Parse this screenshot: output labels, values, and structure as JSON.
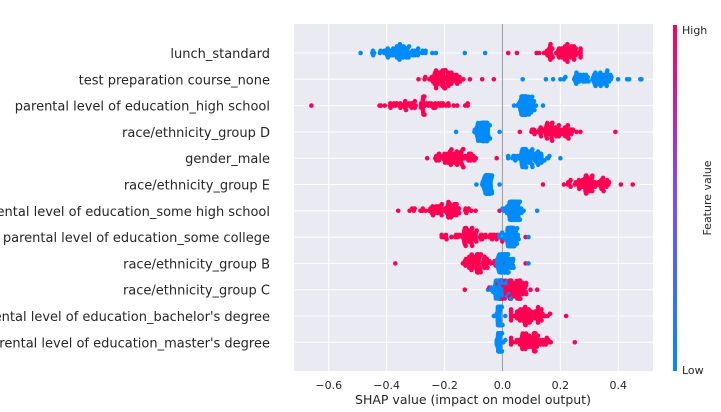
{
  "chart_data": {
    "type": "scatter",
    "subtype": "shap-beeswarm",
    "title": "",
    "xlabel": "SHAP value (impact on model output)",
    "ylabel": "",
    "xlim": [
      -0.72,
      0.52
    ],
    "xticks": [
      -0.6,
      -0.4,
      -0.2,
      0.0,
      0.2,
      0.4
    ],
    "xtick_labels": [
      "−0.6",
      "−0.4",
      "−0.2",
      "0.0",
      "0.2",
      "0.4"
    ],
    "grid": true,
    "colorbar": {
      "label": "Feature value",
      "high_label": "High",
      "low_label": "Low",
      "high_color": "#ff0052",
      "mid_color": "#7a4dff",
      "low_color": "#008bfb"
    },
    "features": [
      {
        "name": "lunch_standard",
        "high": {
          "center": 0.21,
          "spread": 0.055,
          "min": 0.05,
          "max": 0.27
        },
        "low": {
          "center": -0.35,
          "spread": 0.07,
          "min": -0.49,
          "max": -0.13
        },
        "outliers": [
          {
            "x": -0.06,
            "c": "low"
          },
          {
            "x": 0.02,
            "c": "high"
          }
        ]
      },
      {
        "name": "test preparation course_none",
        "high": {
          "center": -0.2,
          "spread": 0.045,
          "min": -0.29,
          "max": -0.07
        },
        "low": {
          "center": 0.32,
          "spread": 0.08,
          "min": 0.15,
          "max": 0.48
        },
        "outliers": [
          {
            "x": -0.03,
            "c": "high"
          },
          {
            "x": 0.07,
            "c": "low"
          }
        ]
      },
      {
        "name": "parental level of education_high school",
        "high": {
          "center": -0.3,
          "spread": 0.1,
          "min": -0.66,
          "max": -0.12
        },
        "low": {
          "center": 0.08,
          "spread": 0.022,
          "min": 0.04,
          "max": 0.14
        },
        "outliers": []
      },
      {
        "name": "race/ethnicity_group D",
        "high": {
          "center": 0.18,
          "spread": 0.06,
          "min": 0.06,
          "max": 0.39
        },
        "low": {
          "center": -0.07,
          "spread": 0.02,
          "min": -0.16,
          "max": -0.01
        },
        "outliers": []
      },
      {
        "name": "gender_male",
        "high": {
          "center": -0.16,
          "spread": 0.045,
          "min": -0.26,
          "max": -0.02
        },
        "low": {
          "center": 0.09,
          "spread": 0.04,
          "min": 0.02,
          "max": 0.2
        },
        "outliers": []
      },
      {
        "name": "race/ethnicity_group E",
        "high": {
          "center": 0.3,
          "spread": 0.06,
          "min": 0.14,
          "max": 0.45
        },
        "low": {
          "center": -0.05,
          "spread": 0.012,
          "min": -0.09,
          "max": -0.01
        },
        "outliers": []
      },
      {
        "name": "parental level of education_some high school",
        "high": {
          "center": -0.2,
          "spread": 0.07,
          "min": -0.36,
          "max": -0.01
        },
        "low": {
          "center": 0.04,
          "spread": 0.02,
          "min": 0.0,
          "max": 0.12
        },
        "outliers": []
      },
      {
        "name": "parental level of education_some college",
        "high": {
          "center": -0.1,
          "spread": 0.06,
          "min": -0.21,
          "max": 0.08
        },
        "low": {
          "center": 0.03,
          "spread": 0.02,
          "min": -0.01,
          "max": 0.09
        },
        "outliers": []
      },
      {
        "name": "race/ethnicity_group B",
        "high": {
          "center": -0.09,
          "spread": 0.05,
          "min": -0.37,
          "max": 0.08
        },
        "low": {
          "center": 0.01,
          "spread": 0.02,
          "min": -0.02,
          "max": 0.09
        },
        "outliers": []
      },
      {
        "name": "race/ethnicity_group C",
        "high": {
          "center": 0.04,
          "spread": 0.04,
          "min": -0.13,
          "max": 0.12
        },
        "low": {
          "center": -0.01,
          "spread": 0.015,
          "min": -0.05,
          "max": 0.03
        },
        "outliers": []
      },
      {
        "name": "parental level of education_bachelor's degree",
        "high": {
          "center": 0.09,
          "spread": 0.05,
          "min": 0.03,
          "max": 0.22
        },
        "low": {
          "center": -0.01,
          "spread": 0.006,
          "min": -0.03,
          "max": 0.01
        },
        "outliers": []
      },
      {
        "name": "parental level of education_master's degree",
        "high": {
          "center": 0.1,
          "spread": 0.055,
          "min": 0.03,
          "max": 0.25
        },
        "low": {
          "center": -0.01,
          "spread": 0.006,
          "min": -0.02,
          "max": 0.01
        },
        "outliers": []
      }
    ]
  }
}
